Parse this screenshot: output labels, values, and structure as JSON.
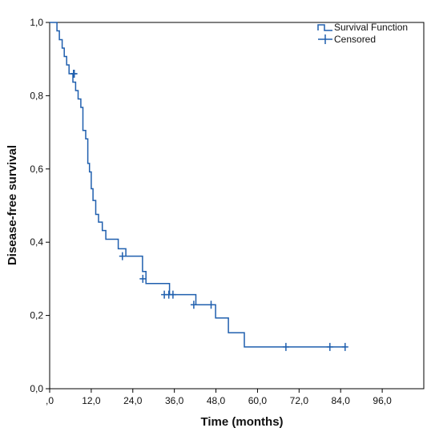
{
  "chart_data": {
    "type": "line",
    "xlabel": "Time (months)",
    "ylabel": "Disease-free survival",
    "xlim": [
      0,
      108
    ],
    "ylim": [
      0,
      1
    ],
    "x_ticks": [
      0,
      12,
      24,
      36,
      48,
      60,
      72,
      84,
      96
    ],
    "x_tick_labels": [
      ",0",
      "12,0",
      "24,0",
      "36,0",
      "48,0",
      "60,0",
      "72,0",
      "84,0",
      "96,0"
    ],
    "y_ticks": [
      0,
      0.2,
      0.4,
      0.6,
      0.8,
      1.0
    ],
    "y_tick_labels": [
      "0,0",
      "0,2",
      "0,4",
      "0,6",
      "0,8",
      "1,0"
    ],
    "grid": false,
    "legend_position": "top-right",
    "color": "#1f5fae",
    "series": [
      {
        "name": "Survival Function",
        "kind": "step",
        "x": [
          0,
          2.1,
          2.8,
          3.6,
          4.2,
          4.9,
          5.6,
          6.7,
          7.5,
          8.2,
          9.0,
          9.6,
          10.4,
          11.0,
          11.5,
          12.0,
          12.5,
          13.3,
          14.1,
          15.2,
          16.2,
          19.8,
          22.0,
          26.8,
          27.8,
          34.6,
          36.4,
          42.2,
          46.5,
          47.9,
          51.6,
          56.2,
          85.5
        ],
        "y": [
          1.0,
          0.977,
          0.953,
          0.93,
          0.907,
          0.884,
          0.86,
          0.837,
          0.814,
          0.791,
          0.768,
          0.705,
          0.682,
          0.615,
          0.592,
          0.546,
          0.514,
          0.476,
          0.455,
          0.432,
          0.408,
          0.382,
          0.362,
          0.32,
          0.287,
          0.257,
          0.257,
          0.229,
          0.229,
          0.193,
          0.153,
          0.114,
          0.114
        ]
      },
      {
        "name": "Censored",
        "kind": "marker",
        "x": [
          6.9,
          7.1,
          21.0,
          26.9,
          33.1,
          34.4,
          35.6,
          41.6,
          46.6,
          68.2,
          80.9,
          85.3
        ],
        "y": [
          0.86,
          0.86,
          0.362,
          0.3,
          0.257,
          0.257,
          0.257,
          0.229,
          0.229,
          0.114,
          0.114,
          0.114
        ]
      }
    ]
  }
}
